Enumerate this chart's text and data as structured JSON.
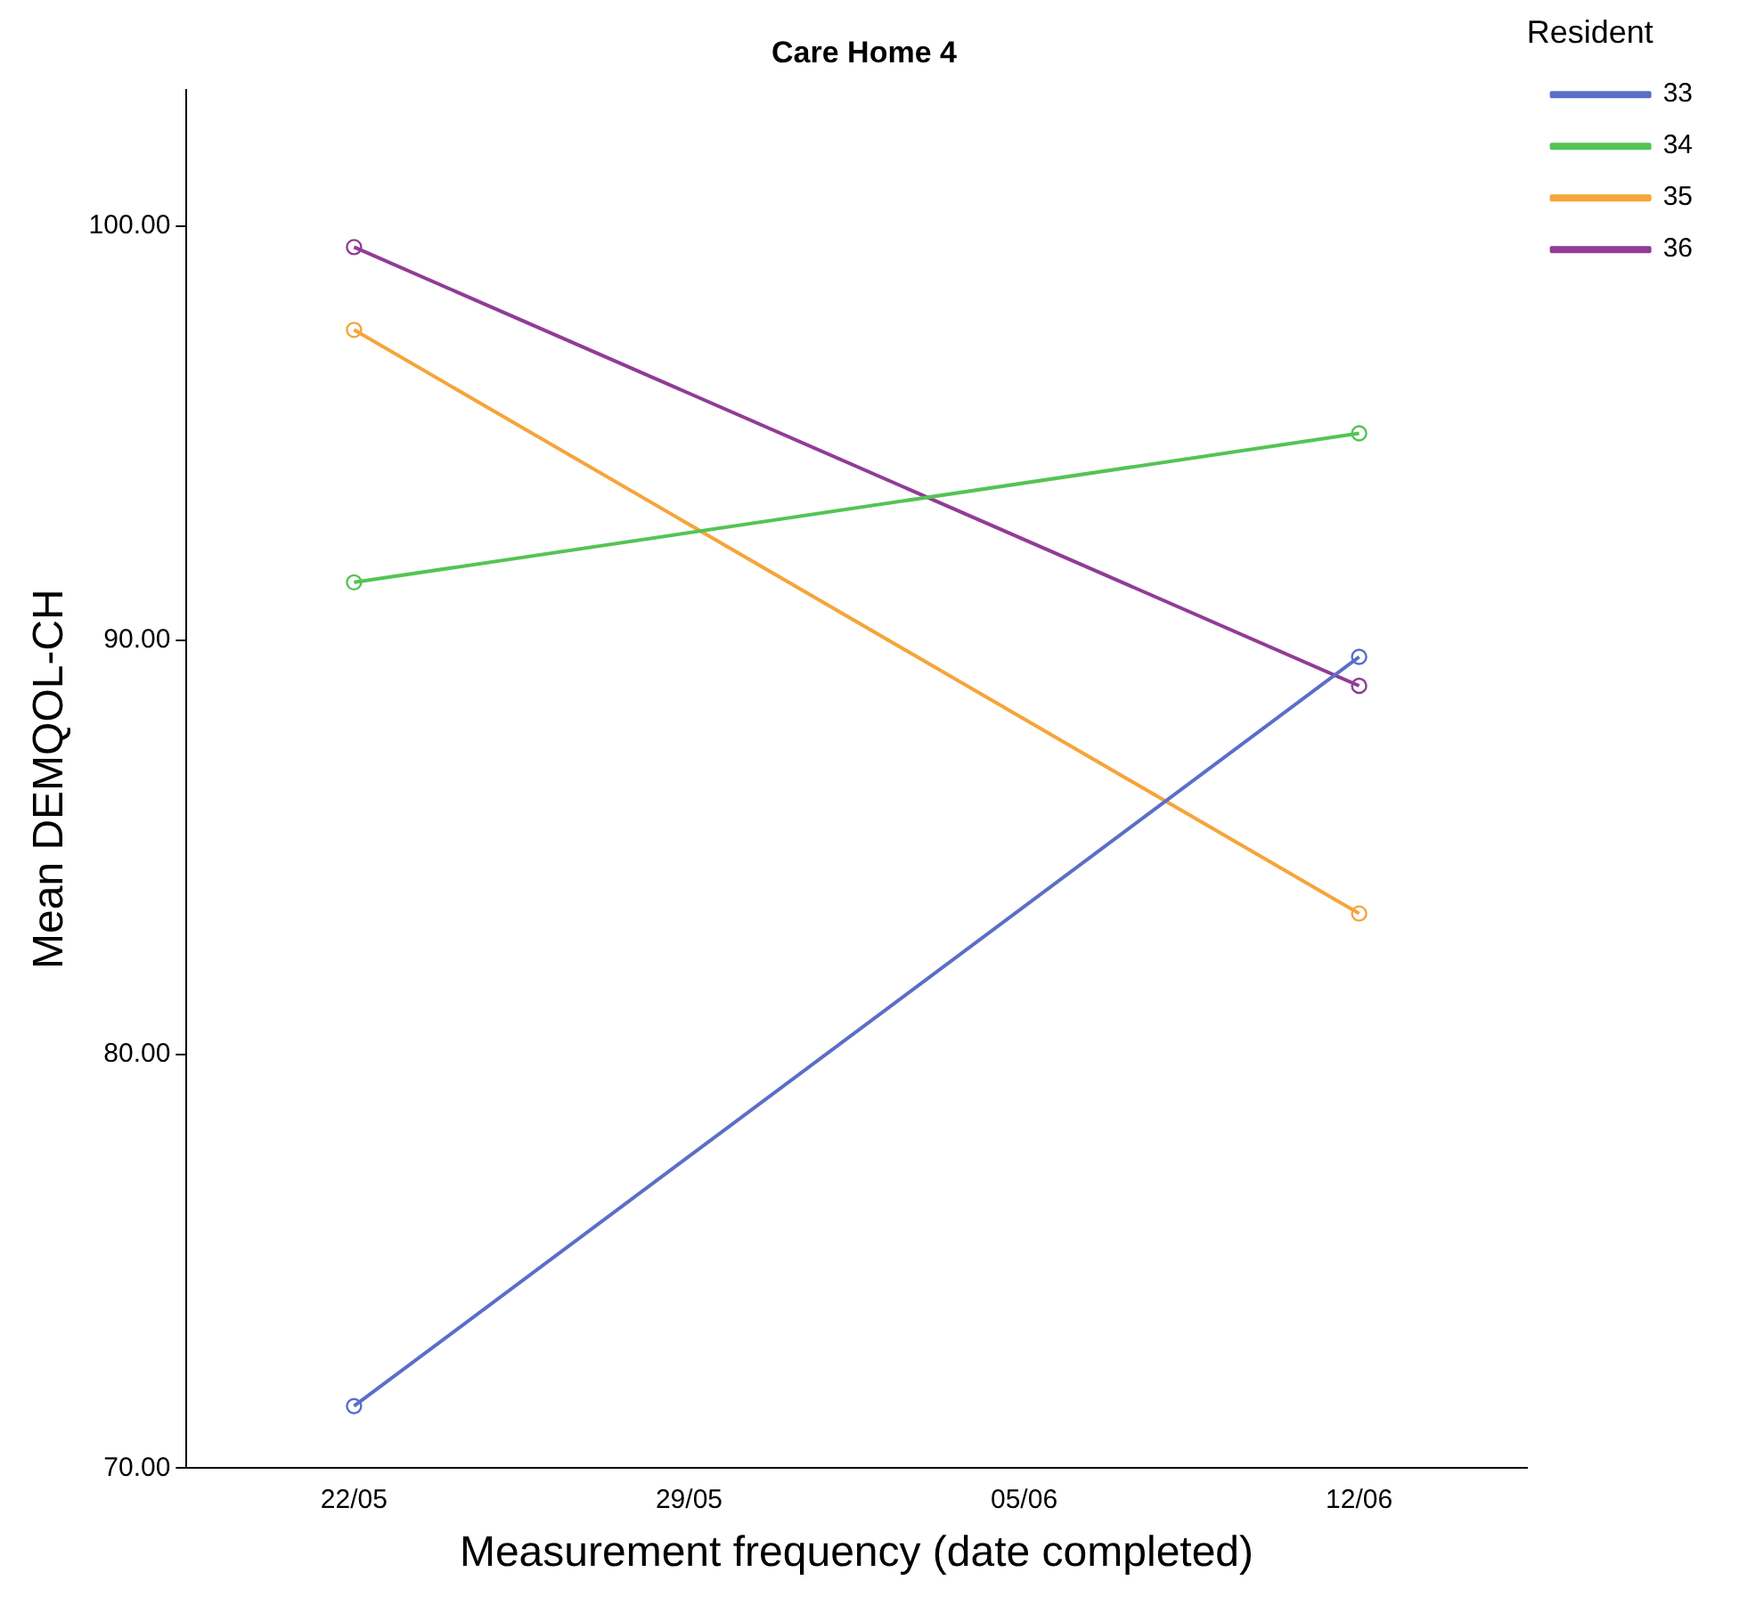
{
  "chart_data": {
    "type": "line",
    "title": "Care Home 4",
    "xlabel": "Measurement frequency (date completed)",
    "ylabel": "Mean DEMQOL-CH",
    "legend_title": "Resident",
    "categories": [
      "22/05",
      "29/05",
      "05/06",
      "12/06"
    ],
    "series": [
      {
        "name": "33",
        "color": "#5b6ec8",
        "values": [
          71.5,
          null,
          null,
          89.6
        ]
      },
      {
        "name": "34",
        "color": "#54c454",
        "values": [
          91.4,
          null,
          null,
          95.0
        ]
      },
      {
        "name": "35",
        "color": "#f5a53a",
        "values": [
          97.5,
          null,
          null,
          83.4
        ]
      },
      {
        "name": "36",
        "color": "#913c96",
        "values": [
          99.5,
          null,
          null,
          88.9
        ]
      }
    ],
    "ylim": [
      70,
      103.3
    ],
    "yticks": [
      {
        "value": 70,
        "label": "70.00"
      },
      {
        "value": 80,
        "label": "80.00"
      },
      {
        "value": 90,
        "label": "90.00"
      },
      {
        "value": 100,
        "label": "100.00"
      }
    ],
    "grid": false,
    "legend": "top right",
    "marker": "circle",
    "line_style": "solid"
  }
}
